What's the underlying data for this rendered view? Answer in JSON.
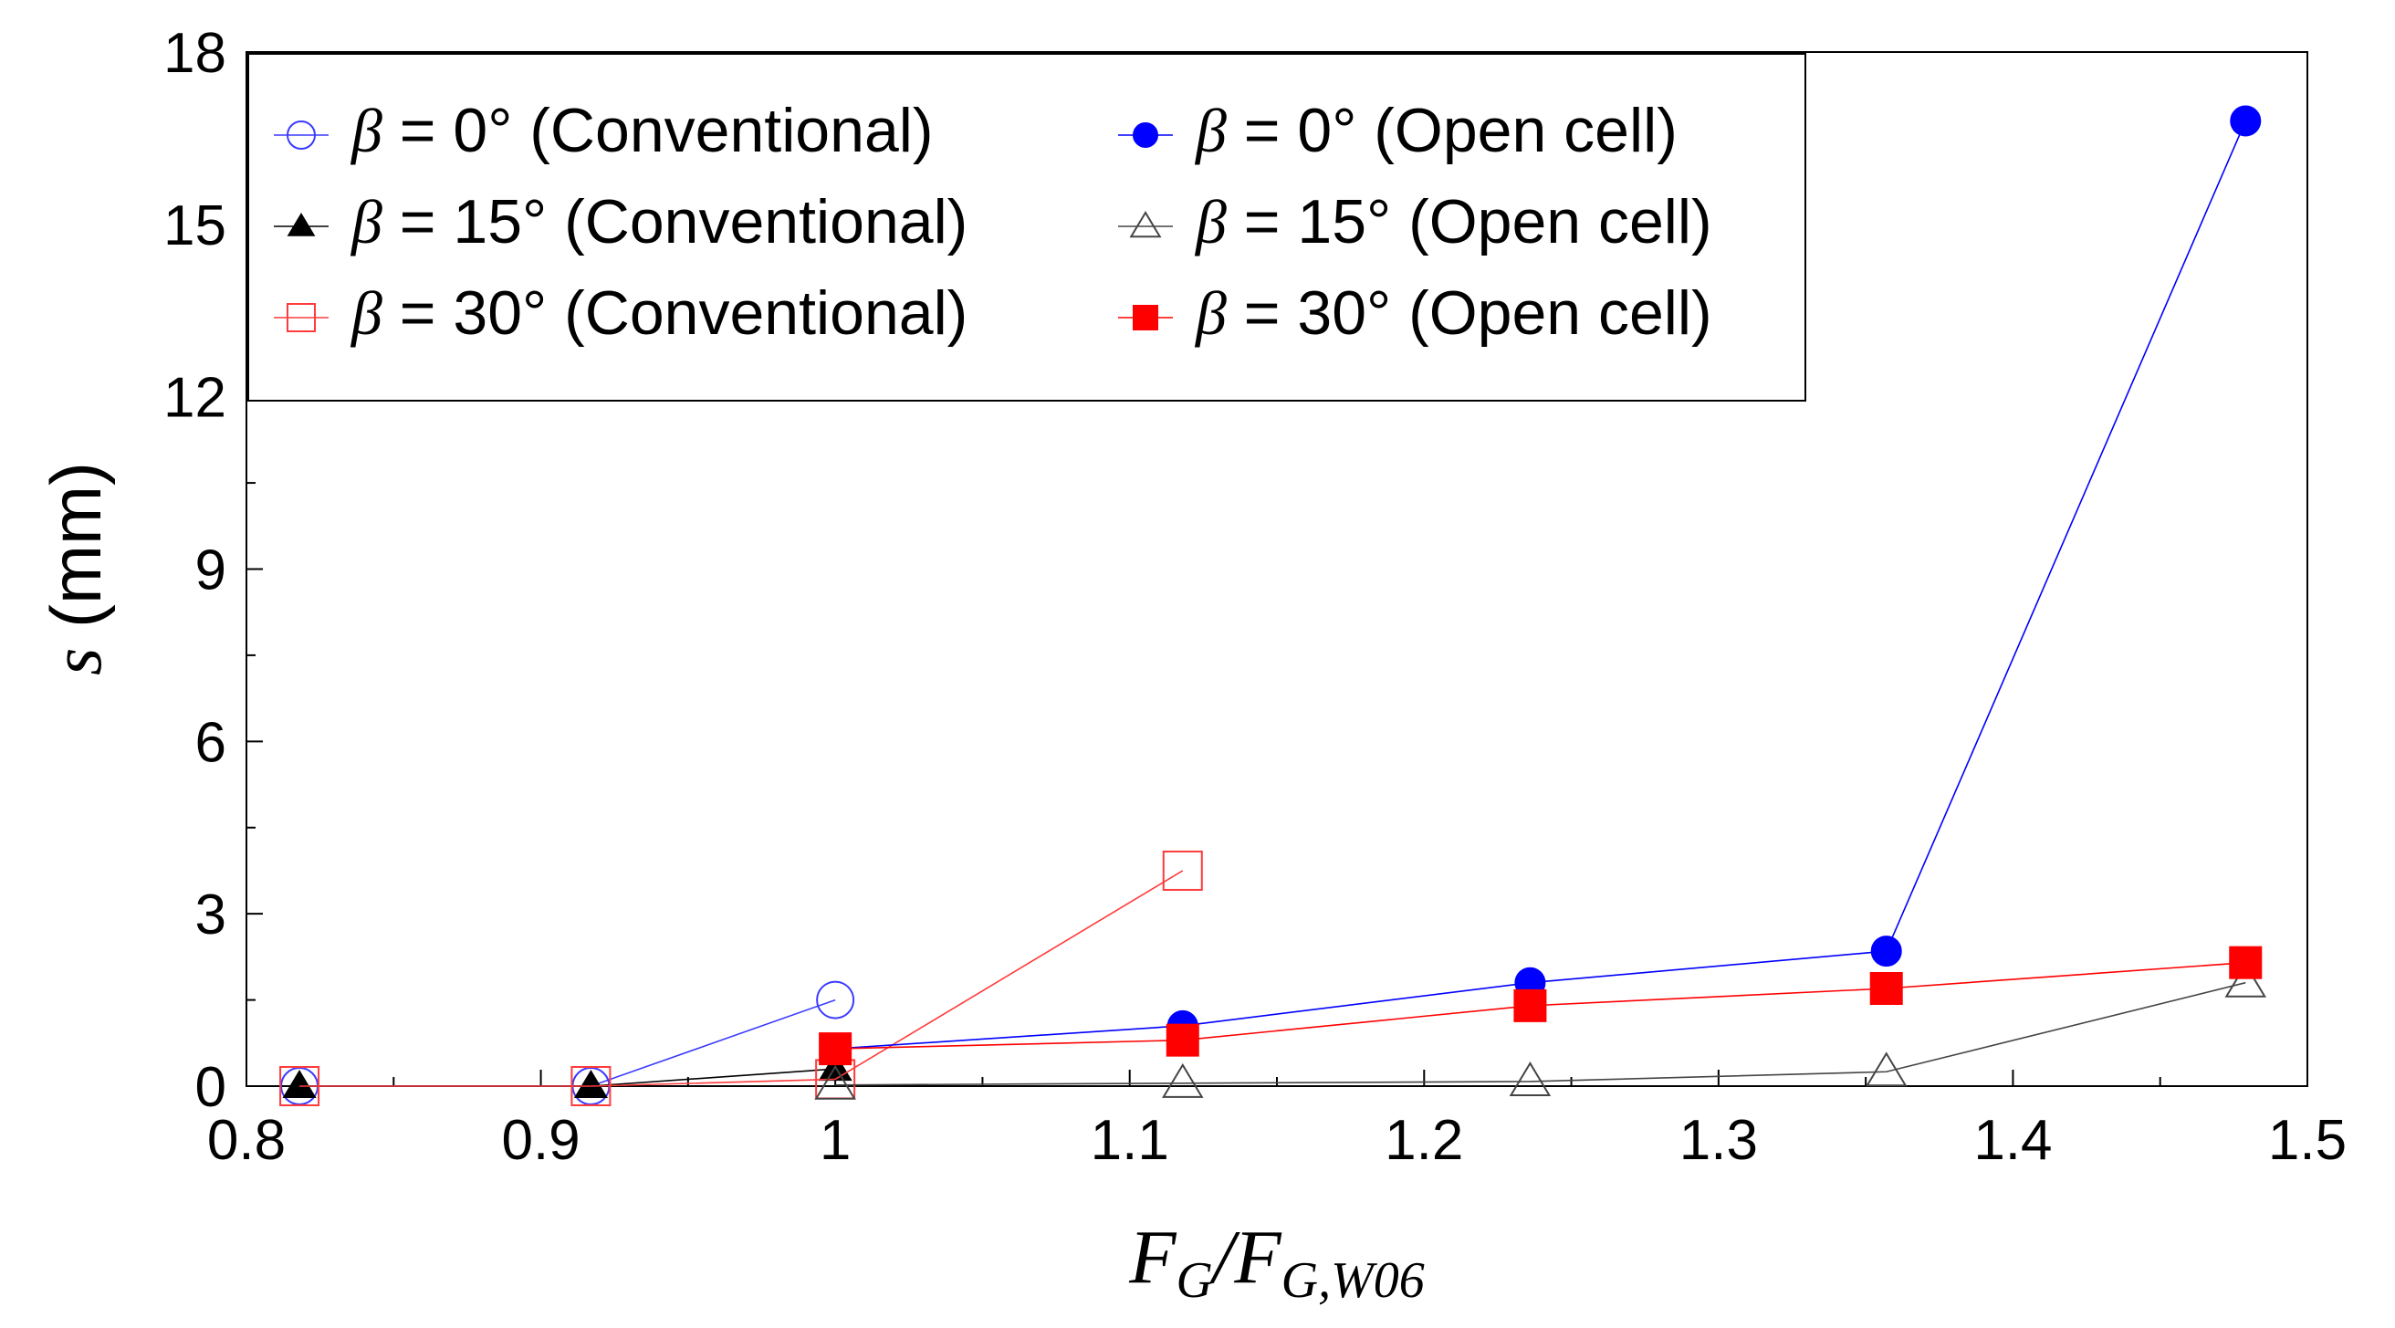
{
  "chart_data": {
    "type": "line",
    "title": "",
    "xlabel": {
      "main": "F",
      "sub1": "G",
      "slash": "/F",
      "sub2": "G,W06"
    },
    "ylabel": {
      "var": "s",
      "unit": " (mm)"
    },
    "xlim": [
      0.8,
      1.5
    ],
    "ylim": [
      0,
      18
    ],
    "xticks": [
      0.8,
      0.9,
      1.0,
      1.1,
      1.2,
      1.3,
      1.4,
      1.5
    ],
    "xtick_labels": [
      "0.8",
      "0.9",
      "1",
      "1.1",
      "1.2",
      "1.3",
      "1.4",
      "1.5"
    ],
    "yticks": [
      0,
      3,
      6,
      9,
      12,
      15,
      18
    ],
    "ytick_labels": [
      "0",
      "3",
      "6",
      "9",
      "12",
      "15",
      "18"
    ],
    "legend_position": "top-left",
    "series": [
      {
        "name": "β = 0° (Conventional)",
        "greek": "β",
        "label": " = 0° (Conventional)",
        "color": "#3b3bff",
        "marker": "circle",
        "filled": false,
        "x": [
          0.818,
          0.917,
          1.0
        ],
        "y": [
          0.0,
          0.0,
          1.5
        ]
      },
      {
        "name": "β = 15° (Conventional)",
        "greek": "β",
        "label": " = 15° (Conventional)",
        "color": "#000000",
        "marker": "triangle",
        "filled": true,
        "x": [
          0.818,
          0.917,
          1.0
        ],
        "y": [
          0.0,
          0.0,
          0.3
        ]
      },
      {
        "name": "β = 30° (Conventional)",
        "greek": "β",
        "label": " = 30° (Conventional)",
        "color": "#ff3b3b",
        "marker": "square",
        "filled": false,
        "x": [
          0.818,
          0.917,
          1.0,
          1.118
        ],
        "y": [
          0.0,
          0.0,
          0.12,
          3.75
        ]
      },
      {
        "name": "β = 0° (Open cell)",
        "greek": "β",
        "label": " = 0° (Open cell)",
        "color": "#0000ff",
        "marker": "circle",
        "filled": true,
        "x": [
          1.0,
          1.118,
          1.236,
          1.357,
          1.479
        ],
        "y": [
          0.65,
          1.05,
          1.8,
          2.35,
          16.8
        ]
      },
      {
        "name": "β = 15° (Open cell)",
        "greek": "β",
        "label": " = 15° (Open cell)",
        "color": "#444444",
        "marker": "triangle",
        "filled": false,
        "x": [
          1.0,
          1.118,
          1.236,
          1.357,
          1.479
        ],
        "y": [
          0.02,
          0.05,
          0.08,
          0.25,
          1.8
        ]
      },
      {
        "name": "β = 30° (Open cell)",
        "greek": "β",
        "label": " = 30° (Open cell)",
        "color": "#ff0000",
        "marker": "square",
        "filled": true,
        "x": [
          1.0,
          1.118,
          1.236,
          1.357,
          1.479
        ],
        "y": [
          0.65,
          0.8,
          1.4,
          1.7,
          2.15
        ]
      }
    ]
  }
}
